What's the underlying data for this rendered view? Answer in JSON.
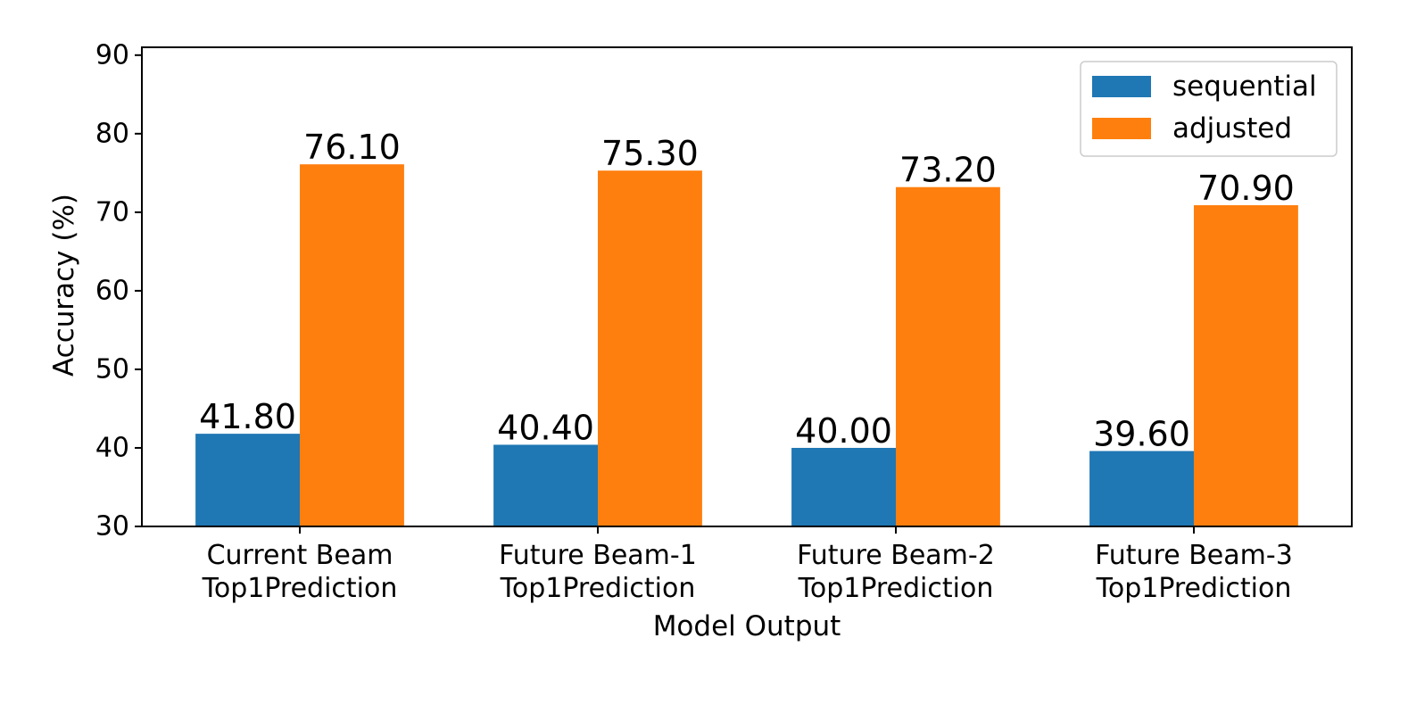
{
  "chart_data": {
    "type": "bar",
    "title": "",
    "xlabel": "Model Output",
    "ylabel": "Accuracy (%)",
    "ylim": [
      30,
      91
    ],
    "yticks": [
      30,
      40,
      50,
      60,
      70,
      80,
      90
    ],
    "grid": false,
    "legend_position": "top-right",
    "categories": [
      [
        "Current Beam",
        "Top1Prediction"
      ],
      [
        "Future Beam-1",
        "Top1Prediction"
      ],
      [
        "Future Beam-2",
        "Top1Prediction"
      ],
      [
        "Future Beam-3",
        "Top1Prediction"
      ]
    ],
    "series": [
      {
        "name": "sequential",
        "color": "#1f77b4",
        "values": [
          41.8,
          40.4,
          40.0,
          39.6
        ]
      },
      {
        "name": "adjusted",
        "color": "#ff7f0e",
        "values": [
          76.1,
          75.3,
          73.2,
          70.9
        ]
      }
    ]
  }
}
